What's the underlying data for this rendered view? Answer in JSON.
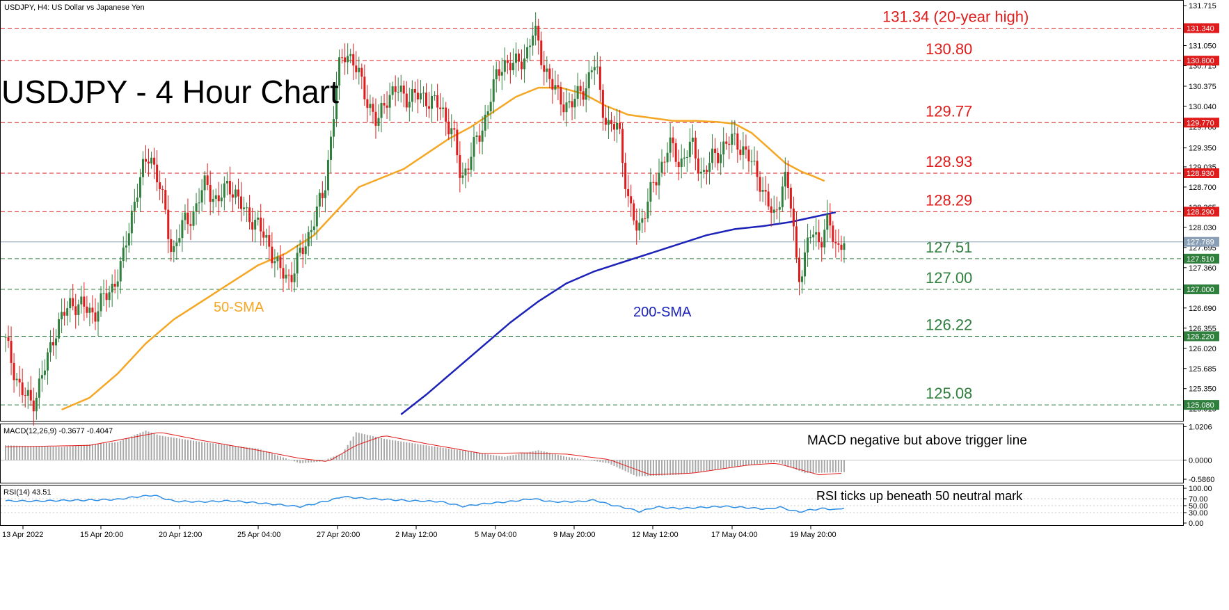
{
  "header": {
    "symbol_info": "USDJPY, H4:  US Dollar vs Japanese Yen",
    "big_title": "USDJPY - 4 Hour Chart"
  },
  "colors": {
    "bull": "#2f7f3d",
    "bear": "#e01b1b",
    "sma50": "#f5a623",
    "sma200": "#1c22b8",
    "resistance": "#e01b1b",
    "support": "#2f7f3d",
    "macd_hist": "#a8a8a8",
    "macd_signal": "#e01b1b",
    "rsi": "#2d8ee6",
    "current_price": "#8a9fb5"
  },
  "chart_data": [
    {
      "type": "candlestick",
      "title": "USDJPY - 4 Hour Chart",
      "ylim": [
        124.85,
        131.715
      ],
      "y_ticks": [
        "131.715",
        "131.050",
        "130.715",
        "130.375",
        "130.040",
        "129.700",
        "129.350",
        "129.035",
        "128.700",
        "128.365",
        "128.030",
        "127.695",
        "127.360",
        "127.025",
        "126.690",
        "126.355",
        "126.020",
        "125.685",
        "125.350",
        "125.015"
      ],
      "x_ticks": [
        "13 Apr 2022",
        "15 Apr 20:00",
        "20 Apr 12:00",
        "25 Apr 04:00",
        "27 Apr 20:00",
        "2 May 12:00",
        "5 May 04:00",
        "9 May 20:00",
        "12 May 12:00",
        "17 May 04:00",
        "19 May 20:00"
      ],
      "levels": [
        {
          "value": 131.34,
          "label": "131.34 (20-year high)",
          "tag": "131.340",
          "kind": "resistance"
        },
        {
          "value": 130.8,
          "label": "130.80",
          "tag": "130.800",
          "kind": "resistance"
        },
        {
          "value": 129.77,
          "label": "129.77",
          "tag": "129.770",
          "kind": "resistance"
        },
        {
          "value": 128.93,
          "label": "128.93",
          "tag": "128.930",
          "kind": "resistance"
        },
        {
          "value": 128.29,
          "label": "128.29",
          "tag": "128.290",
          "kind": "resistance"
        },
        {
          "value": 127.51,
          "label": "127.51",
          "tag": "127.510",
          "kind": "support"
        },
        {
          "value": 127.0,
          "label": "127.00",
          "tag": "127.000",
          "kind": "support"
        },
        {
          "value": 126.22,
          "label": "126.22",
          "tag": "126.220",
          "kind": "support"
        },
        {
          "value": 125.08,
          "label": "125.08",
          "tag": "125.080",
          "kind": "support"
        }
      ],
      "current_price": {
        "value": 127.789,
        "tag": "127.789"
      },
      "sma_labels": {
        "sma50": "50-SMA",
        "sma200": "200-SMA"
      },
      "anchors": [
        [
          0,
          126.2
        ],
        [
          6,
          125.3
        ],
        [
          10,
          125.1
        ],
        [
          14,
          125.6
        ],
        [
          18,
          126.3
        ],
        [
          24,
          126.8
        ],
        [
          32,
          126.6
        ],
        [
          38,
          127.0
        ],
        [
          42,
          127.4
        ],
        [
          46,
          128.4
        ],
        [
          49,
          128.9
        ],
        [
          52,
          129.3
        ],
        [
          56,
          128.6
        ],
        [
          60,
          127.6
        ],
        [
          64,
          128.1
        ],
        [
          68,
          128.3
        ],
        [
          72,
          128.8
        ],
        [
          76,
          128.4
        ],
        [
          80,
          128.8
        ],
        [
          84,
          128.4
        ],
        [
          88,
          128.2
        ],
        [
          94,
          127.8
        ],
        [
          98,
          127.3
        ],
        [
          102,
          127.2
        ],
        [
          106,
          127.6
        ],
        [
          110,
          128.1
        ],
        [
          114,
          128.6
        ],
        [
          117,
          129.7
        ],
        [
          119,
          130.6
        ],
        [
          122,
          131.0
        ],
        [
          126,
          130.6
        ],
        [
          130,
          130.1
        ],
        [
          133,
          129.7
        ],
        [
          136,
          130.2
        ],
        [
          140,
          130.3
        ],
        [
          144,
          130.2
        ],
        [
          150,
          130.2
        ],
        [
          156,
          130.0
        ],
        [
          160,
          129.6
        ],
        [
          163,
          128.8
        ],
        [
          166,
          129.2
        ],
        [
          170,
          129.6
        ],
        [
          174,
          130.3
        ],
        [
          178,
          130.8
        ],
        [
          182,
          130.7
        ],
        [
          186,
          130.9
        ],
        [
          189,
          131.3
        ],
        [
          192,
          130.8
        ],
        [
          195,
          130.4
        ],
        [
          198,
          130.2
        ],
        [
          202,
          130.0
        ],
        [
          205,
          130.3
        ],
        [
          208,
          130.4
        ],
        [
          211,
          130.8
        ],
        [
          213,
          130.1
        ],
        [
          216,
          129.6
        ],
        [
          219,
          129.8
        ],
        [
          221,
          129.0
        ],
        [
          223,
          128.3
        ],
        [
          226,
          128.0
        ],
        [
          229,
          128.4
        ],
        [
          233,
          128.9
        ],
        [
          237,
          129.4
        ],
        [
          241,
          129.1
        ],
        [
          245,
          129.4
        ],
        [
          249,
          128.9
        ],
        [
          253,
          129.2
        ],
        [
          257,
          129.4
        ],
        [
          261,
          129.5
        ],
        [
          265,
          129.2
        ],
        [
          269,
          128.9
        ],
        [
          272,
          128.4
        ],
        [
          275,
          128.2
        ],
        [
          278,
          128.9
        ],
        [
          281,
          128.3
        ],
        [
          283,
          127.2
        ],
        [
          285,
          127.4
        ],
        [
          288,
          128.0
        ],
        [
          291,
          127.8
        ],
        [
          294,
          128.1
        ],
        [
          297,
          127.7
        ],
        [
          299,
          127.8
        ]
      ],
      "sma50_anchors": [
        [
          20,
          125.0
        ],
        [
          30,
          125.2
        ],
        [
          40,
          125.6
        ],
        [
          50,
          126.1
        ],
        [
          60,
          126.5
        ],
        [
          70,
          126.8
        ],
        [
          80,
          127.1
        ],
        [
          90,
          127.4
        ],
        [
          100,
          127.6
        ],
        [
          110,
          127.9
        ],
        [
          118,
          128.3
        ],
        [
          126,
          128.7
        ],
        [
          134,
          128.85
        ],
        [
          142,
          129.0
        ],
        [
          150,
          129.25
        ],
        [
          158,
          129.5
        ],
        [
          166,
          129.7
        ],
        [
          174,
          129.95
        ],
        [
          182,
          130.2
        ],
        [
          190,
          130.35
        ],
        [
          198,
          130.35
        ],
        [
          206,
          130.25
        ],
        [
          214,
          130.05
        ],
        [
          222,
          129.9
        ],
        [
          230,
          129.85
        ],
        [
          238,
          129.8
        ],
        [
          246,
          129.8
        ],
        [
          254,
          129.78
        ],
        [
          260,
          129.75
        ],
        [
          266,
          129.6
        ],
        [
          272,
          129.35
        ],
        [
          278,
          129.1
        ],
        [
          284,
          128.95
        ],
        [
          288,
          128.88
        ],
        [
          292,
          128.8
        ]
      ],
      "sma200_anchors": [
        [
          141,
          124.92
        ],
        [
          150,
          125.25
        ],
        [
          160,
          125.65
        ],
        [
          170,
          126.05
        ],
        [
          180,
          126.45
        ],
        [
          190,
          126.8
        ],
        [
          200,
          127.1
        ],
        [
          210,
          127.3
        ],
        [
          220,
          127.45
        ],
        [
          230,
          127.6
        ],
        [
          240,
          127.75
        ],
        [
          250,
          127.9
        ],
        [
          260,
          128.0
        ],
        [
          270,
          128.05
        ],
        [
          280,
          128.12
        ],
        [
          290,
          128.22
        ],
        [
          296,
          128.28
        ]
      ],
      "candle_start_x": 8,
      "candle_step": 4.03
    },
    {
      "type": "histogram",
      "title": "MACD(12,26,9) -0.3677 -0.4047",
      "ylim": [
        -0.65,
        1.05
      ],
      "y_ticks": [
        "1.0206",
        "0.0000",
        "-0.5860"
      ],
      "annotation": "MACD negative but above trigger line",
      "macd_anchors": [
        [
          0,
          0.45
        ],
        [
          20,
          0.4
        ],
        [
          40,
          0.55
        ],
        [
          50,
          0.9
        ],
        [
          55,
          0.75
        ],
        [
          70,
          0.55
        ],
        [
          90,
          0.35
        ],
        [
          105,
          -0.1
        ],
        [
          112,
          -0.05
        ],
        [
          120,
          0.2
        ],
        [
          125,
          0.85
        ],
        [
          135,
          0.65
        ],
        [
          150,
          0.45
        ],
        [
          170,
          0.2
        ],
        [
          178,
          0.1
        ],
        [
          190,
          0.3
        ],
        [
          200,
          0.1
        ],
        [
          215,
          -0.1
        ],
        [
          225,
          -0.5
        ],
        [
          240,
          -0.45
        ],
        [
          260,
          -0.2
        ],
        [
          275,
          -0.05
        ],
        [
          285,
          -0.4
        ],
        [
          299,
          -0.37
        ]
      ],
      "signal_anchors": [
        [
          0,
          0.4
        ],
        [
          30,
          0.45
        ],
        [
          55,
          0.85
        ],
        [
          70,
          0.6
        ],
        [
          90,
          0.3
        ],
        [
          105,
          0.05
        ],
        [
          115,
          -0.05
        ],
        [
          125,
          0.45
        ],
        [
          135,
          0.75
        ],
        [
          150,
          0.5
        ],
        [
          170,
          0.2
        ],
        [
          185,
          0.22
        ],
        [
          200,
          0.18
        ],
        [
          215,
          0.02
        ],
        [
          230,
          -0.45
        ],
        [
          245,
          -0.4
        ],
        [
          265,
          -0.15
        ],
        [
          275,
          -0.1
        ],
        [
          290,
          -0.45
        ],
        [
          299,
          -0.4
        ]
      ]
    },
    {
      "type": "line",
      "title": "RSI(14) 43.51",
      "ylim": [
        0,
        100
      ],
      "y_ticks": [
        "100.00",
        "70.00",
        "50.00",
        "30.00",
        "0.00"
      ],
      "annotation": "RSI ticks up beneath 50 neutral mark",
      "rsi_anchors": [
        [
          0,
          64
        ],
        [
          10,
          63
        ],
        [
          20,
          65
        ],
        [
          30,
          66
        ],
        [
          40,
          68
        ],
        [
          45,
          74
        ],
        [
          50,
          78
        ],
        [
          53,
          80
        ],
        [
          56,
          72
        ],
        [
          60,
          63
        ],
        [
          70,
          61
        ],
        [
          80,
          64
        ],
        [
          90,
          58
        ],
        [
          100,
          51
        ],
        [
          105,
          47
        ],
        [
          110,
          55
        ],
        [
          117,
          68
        ],
        [
          120,
          76
        ],
        [
          126,
          72
        ],
        [
          135,
          68
        ],
        [
          145,
          64
        ],
        [
          155,
          62
        ],
        [
          163,
          48
        ],
        [
          170,
          55
        ],
        [
          180,
          62
        ],
        [
          188,
          70
        ],
        [
          195,
          61
        ],
        [
          205,
          62
        ],
        [
          210,
          66
        ],
        [
          216,
          52
        ],
        [
          222,
          42
        ],
        [
          226,
          33
        ],
        [
          232,
          46
        ],
        [
          240,
          42
        ],
        [
          248,
          45
        ],
        [
          256,
          48
        ],
        [
          265,
          44
        ],
        [
          272,
          40
        ],
        [
          276,
          46
        ],
        [
          280,
          37
        ],
        [
          283,
          32
        ],
        [
          287,
          38
        ],
        [
          292,
          42
        ],
        [
          296,
          38
        ],
        [
          299,
          44
        ]
      ]
    }
  ]
}
